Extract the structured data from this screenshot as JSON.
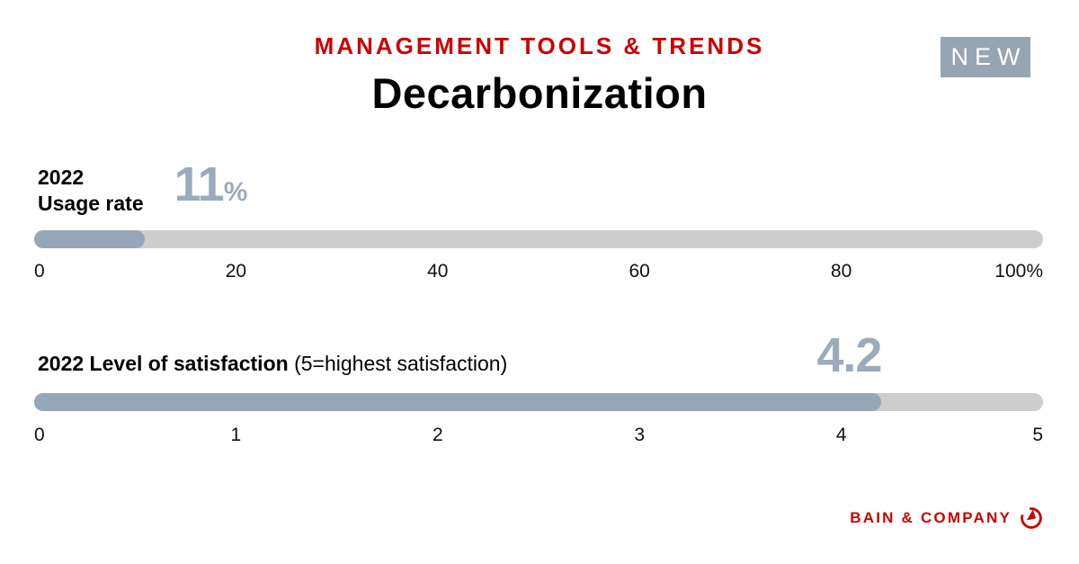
{
  "header": {
    "eyebrow": "MANAGEMENT TOOLS & TRENDS",
    "title": "Decarbonization",
    "badge": "NEW"
  },
  "colors": {
    "accent_red": "#cc0000",
    "bar_fill": "#95a7b7",
    "bar_track": "#cdcdcd",
    "value_text": "#9cabbb",
    "badge_bg": "#96a5b4"
  },
  "chart_data": [
    {
      "type": "bar",
      "title": "2022 Usage rate",
      "label_lines": [
        "2022",
        "Usage rate"
      ],
      "value": 11,
      "value_display": "11",
      "unit": "%",
      "xlim": [
        0,
        100
      ],
      "xticks": [
        "0",
        "20",
        "40",
        "60",
        "80",
        "100%"
      ],
      "orientation": "horizontal",
      "grid": false,
      "legend": "none"
    },
    {
      "type": "bar",
      "title": "2022 Level of satisfaction",
      "subtitle": "(5=highest satisfaction)",
      "value": 4.2,
      "value_display": "4.2",
      "xlim": [
        0,
        5
      ],
      "xticks": [
        "0",
        "1",
        "2",
        "3",
        "4",
        "5"
      ],
      "orientation": "horizontal",
      "grid": false,
      "legend": "none"
    }
  ],
  "footer": {
    "brand": "BAIN & COMPANY"
  }
}
